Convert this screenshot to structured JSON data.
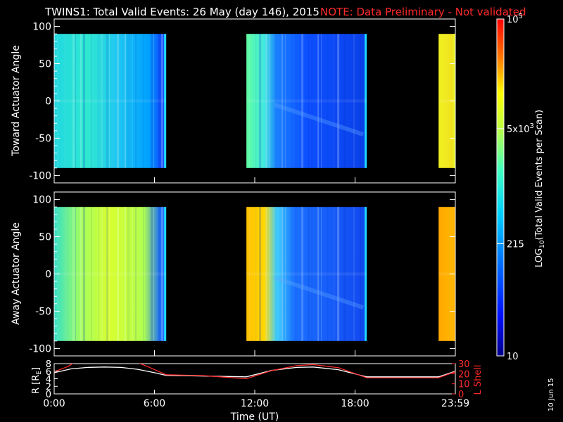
{
  "title": {
    "main": "TWINS1: Total Valid Events: 26 May (day 146), 2015",
    "note": "NOTE: Data Preliminary - Not validated",
    "note_color": "#ff2a2a"
  },
  "date_stamp": "10 Jun 15",
  "chart_data": [
    {
      "type": "heatmap",
      "name": "toward",
      "ylabel": "Toward Actuator Angle",
      "ylim": [
        -110,
        110
      ],
      "yticks": [
        "100",
        "50",
        "0",
        "-50",
        "-100"
      ],
      "xlim": [
        0,
        24
      ],
      "data_blocks_hours": [
        [
          0.0,
          6.7
        ],
        [
          11.5,
          18.7
        ],
        [
          23.0,
          24.0
        ]
      ],
      "angle_range": [
        -90,
        90
      ]
    },
    {
      "type": "heatmap",
      "name": "away",
      "ylabel": "Away Actuator Angle",
      "ylim": [
        -110,
        110
      ],
      "yticks": [
        "100",
        "50",
        "0",
        "-50",
        "-100"
      ],
      "xlim": [
        0,
        24
      ],
      "data_blocks_hours": [
        [
          0.0,
          6.7
        ],
        [
          11.5,
          18.7
        ],
        [
          23.0,
          24.0
        ]
      ],
      "angle_range": [
        -90,
        90
      ]
    },
    {
      "type": "line",
      "name": "orbit",
      "xlim": [
        0,
        24
      ],
      "xlabel": "Time (UT)",
      "xticks": [
        "0:00",
        "6:00",
        "12:00",
        "18:00",
        "23:59"
      ],
      "ylabel_left": "R [R",
      "ylabel_left_sub": "E",
      "ylabel_left_close": "]",
      "ylim_left": [
        0,
        8
      ],
      "yticks_left": [
        "8",
        "6",
        "4",
        "2",
        "0"
      ],
      "ylabel_right": "L Shell",
      "ylim_right": [
        0,
        30
      ],
      "yticks_right": [
        "30",
        "20",
        "10",
        "0"
      ],
      "series": [
        {
          "color": "#ffffff",
          "axis": "left",
          "x": [
            0.0,
            1.0,
            2.0,
            3.0,
            4.0,
            5.0,
            6.0,
            6.7,
            9.0,
            11.5,
            13.0,
            14.5,
            15.5,
            17.0,
            18.7,
            21.0,
            23.0,
            24.0
          ],
          "y": [
            5.6,
            6.6,
            7.0,
            7.1,
            7.0,
            6.5,
            5.6,
            4.9,
            4.7,
            4.5,
            6.2,
            7.0,
            7.1,
            6.4,
            4.5,
            4.5,
            4.5,
            6.0
          ]
        },
        {
          "color": "#ff2a2a",
          "axis": "right",
          "x": [
            0.0,
            0.8,
            1.2,
            5.0,
            5.6,
            6.7,
            9.0,
            11.5,
            13.0,
            14.5,
            15.5,
            17.0,
            18.7,
            21.0,
            23.0,
            24.0
          ],
          "y": [
            22.0,
            27.0,
            31.0,
            31.0,
            27.0,
            19.0,
            18.0,
            15.0,
            23.0,
            28.0,
            29.0,
            26.0,
            16.0,
            16.0,
            16.0,
            22.0
          ]
        }
      ]
    }
  ],
  "colorbar": {
    "label_pre": "LOG",
    "label_sub": "10",
    "label_post": "(Total Valid Events per Scan)",
    "ticks": [
      {
        "base": "10",
        "exp": "5",
        "value": 100000
      },
      {
        "base": "5x10",
        "exp": "3",
        "value": 5000
      },
      {
        "base": "215",
        "exp": "",
        "value": 215
      },
      {
        "base": "10",
        "exp": "",
        "value": 10
      }
    ],
    "range": [
      10,
      100000
    ]
  }
}
